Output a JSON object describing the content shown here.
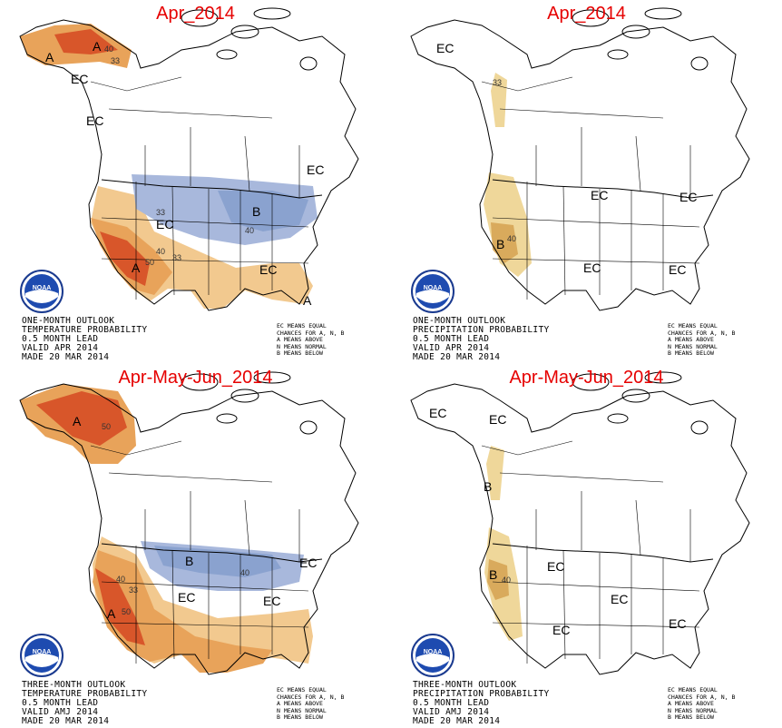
{
  "colors": {
    "title_red": "#e60000",
    "above_40": "#e8a35a",
    "above_33": "#f2c98f",
    "above_50": "#d8562a",
    "below_33": "#a8b8dc",
    "below_40": "#8aa2cf",
    "dry_33": "#efd79a",
    "dry_40": "#d9aa5c"
  },
  "panels": [
    {
      "title": "Apr_2014",
      "caption": [
        "ONE-MONTH OUTLOOK",
        "TEMPERATURE PROBABILITY",
        "0.5 MONTH LEAD",
        "VALID APR 2014",
        "MADE 20 MAR 2014"
      ],
      "labels": {
        "ec1": "EC",
        "ec2": "EC",
        "ec3": "EC",
        "ec4": "EC",
        "ec5": "EC",
        "a1": "A",
        "a2": "A",
        "a3": "A",
        "a4": "A",
        "b1": "B",
        "n40a": "40",
        "n33a": "33",
        "n33b": "33",
        "n40b": "40",
        "n50": "50",
        "n33c": "33",
        "n40c": "40"
      }
    },
    {
      "title": "Apr_2014",
      "caption": [
        "ONE-MONTH OUTLOOK",
        "PRECIPITATION PROBABILITY",
        "0.5 MONTH LEAD",
        "VALID APR 2014",
        "MADE 20 MAR 2014"
      ],
      "labels": {
        "ec1": "EC",
        "ec2": "EC",
        "ec3": "EC",
        "ec4": "EC",
        "ec5": "EC",
        "b1": "B",
        "n33": "33",
        "n40": "40"
      }
    },
    {
      "title": "Apr-May-Jun_2014",
      "caption": [
        "THREE-MONTH OUTLOOK",
        "TEMPERATURE PROBABILITY",
        "0.5 MONTH LEAD",
        "VALID AMJ 2014",
        "MADE 20 MAR 2014"
      ],
      "labels": {
        "ec1": "EC",
        "ec2": "EC",
        "ec3": "EC",
        "a1": "A",
        "a2": "A",
        "b1": "B",
        "n50a": "50",
        "n40a": "40",
        "n33": "33",
        "n50b": "50",
        "n40b": "40"
      }
    },
    {
      "title": "Apr-May-Jun_2014",
      "caption": [
        "THREE-MONTH OUTLOOK",
        "PRECIPITATION PROBABILITY",
        "0.5 MONTH LEAD",
        "VALID AMJ 2014",
        "MADE 20 MAR 2014"
      ],
      "labels": {
        "ec1": "EC",
        "ec2": "EC",
        "ec3": "EC",
        "ec4": "EC",
        "ec5": "EC",
        "ec6": "EC",
        "b1": "B",
        "b2": "B",
        "n40": "40"
      }
    }
  ],
  "legend": [
    "EC MEANS EQUAL",
    "CHANCES FOR A, N, B",
    "A MEANS ABOVE",
    "N MEANS NORMAL",
    "B MEANS BELOW"
  ],
  "logo": {
    "text": "NOAA",
    "icon": "noaa-logo-icon"
  }
}
